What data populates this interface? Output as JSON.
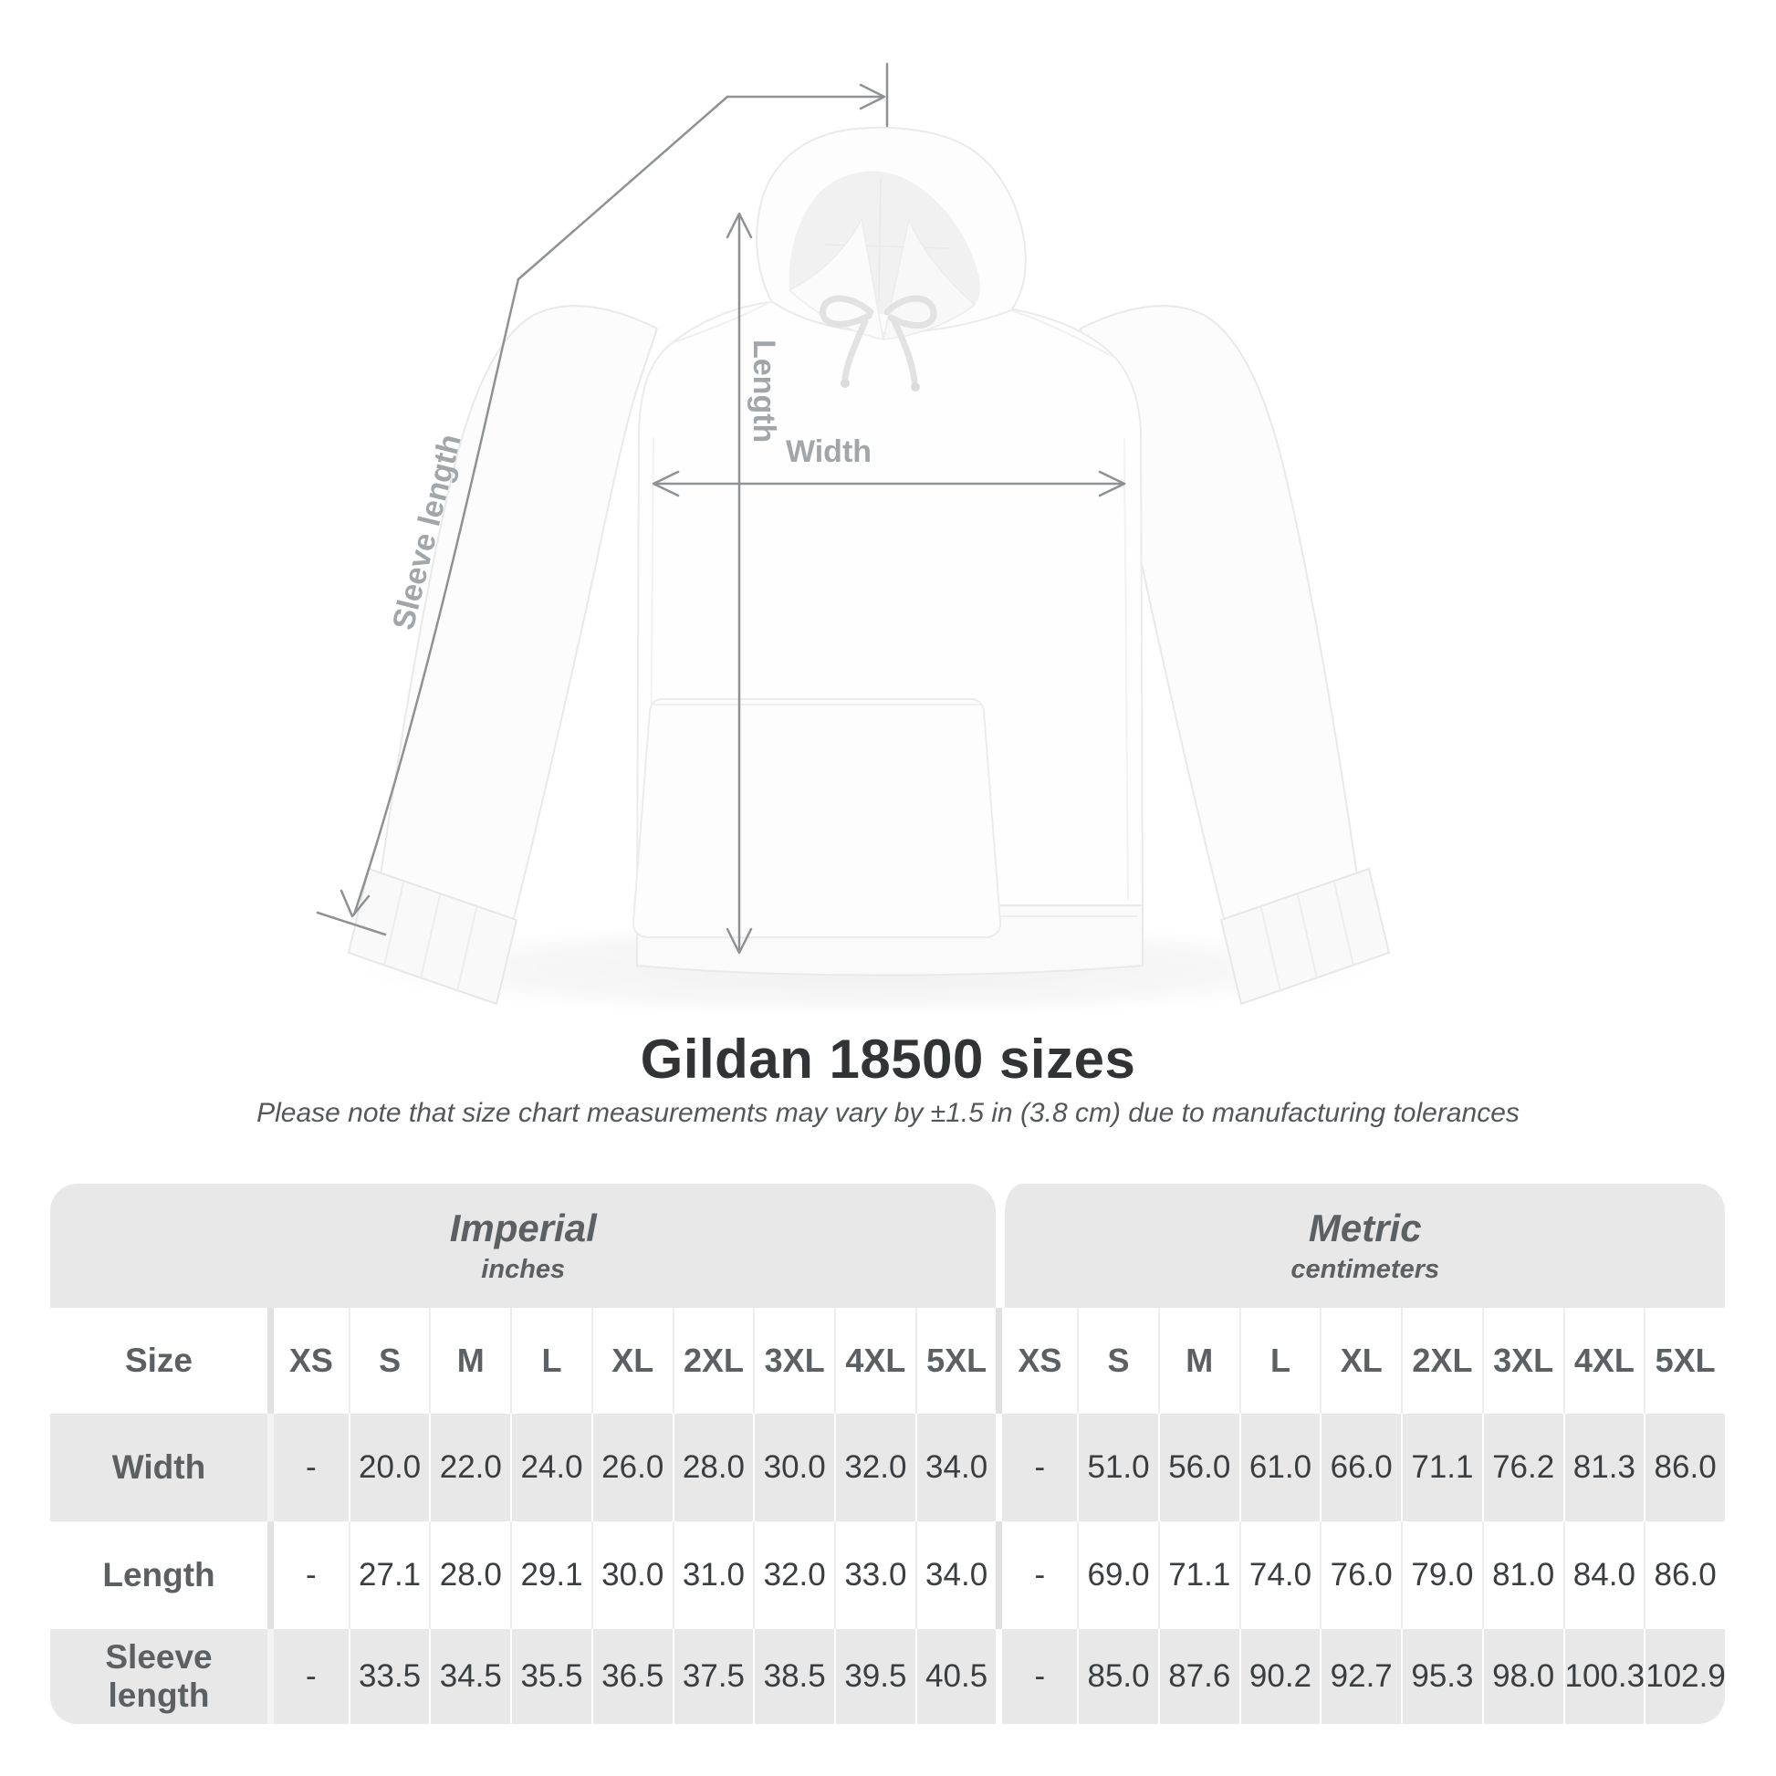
{
  "diagram": {
    "length_label": "Length",
    "width_label": "Width",
    "sleeve_label": "Sleeve length"
  },
  "title": "Gildan 18500 sizes",
  "subtitle": "Please note that size chart measurements may vary by ±1.5 in (3.8 cm) due to manufacturing tolerances",
  "table": {
    "sections": [
      {
        "label": "Imperial",
        "sublabel": "inches"
      },
      {
        "label": "Metric",
        "sublabel": "centimeters"
      }
    ],
    "size_header": "Size",
    "sizes": [
      "XS",
      "S",
      "M",
      "L",
      "XL",
      "2XL",
      "3XL",
      "4XL",
      "5XL"
    ],
    "rows": [
      {
        "label": "Width",
        "imperial": [
          "-",
          "20.0",
          "22.0",
          "24.0",
          "26.0",
          "28.0",
          "30.0",
          "32.0",
          "34.0"
        ],
        "metric": [
          "-",
          "51.0",
          "56.0",
          "61.0",
          "66.0",
          "71.1",
          "76.2",
          "81.3",
          "86.0"
        ]
      },
      {
        "label": "Length",
        "imperial": [
          "-",
          "27.1",
          "28.0",
          "29.1",
          "30.0",
          "31.0",
          "32.0",
          "33.0",
          "34.0"
        ],
        "metric": [
          "-",
          "69.0",
          "71.1",
          "74.0",
          "76.0",
          "79.0",
          "81.0",
          "84.0",
          "86.0"
        ]
      },
      {
        "label": "Sleeve length",
        "imperial": [
          "-",
          "33.5",
          "34.5",
          "35.5",
          "36.5",
          "37.5",
          "38.5",
          "39.5",
          "40.5"
        ],
        "metric": [
          "-",
          "85.0",
          "87.6",
          "90.2",
          "92.7",
          "95.3",
          "98.0",
          "100.3",
          "102.9"
        ]
      }
    ]
  },
  "chart_data": {
    "type": "table",
    "title": "Gildan 18500 sizes",
    "columns": [
      "Size",
      "XS",
      "S",
      "M",
      "L",
      "XL",
      "2XL",
      "3XL",
      "4XL",
      "5XL"
    ],
    "units": {
      "imperial": "inches",
      "metric": "centimeters"
    },
    "rows_imperial": [
      [
        "Width",
        "-",
        20.0,
        22.0,
        24.0,
        26.0,
        28.0,
        30.0,
        32.0,
        34.0
      ],
      [
        "Length",
        "-",
        27.1,
        28.0,
        29.1,
        30.0,
        31.0,
        32.0,
        33.0,
        34.0
      ],
      [
        "Sleeve length",
        "-",
        33.5,
        34.5,
        35.5,
        36.5,
        37.5,
        38.5,
        39.5,
        40.5
      ]
    ],
    "rows_metric": [
      [
        "Width",
        "-",
        51.0,
        56.0,
        61.0,
        66.0,
        71.1,
        76.2,
        81.3,
        86.0
      ],
      [
        "Length",
        "-",
        69.0,
        71.1,
        74.0,
        76.0,
        79.0,
        81.0,
        84.0,
        86.0
      ],
      [
        "Sleeve length",
        "-",
        85.0,
        87.6,
        90.2,
        92.7,
        95.3,
        98.0,
        100.3,
        102.9
      ]
    ]
  },
  "colors": {
    "annotation_line": "#8e9294",
    "annotation_label": "#a2a6a9",
    "table_band": "#e8e8e8",
    "header_text": "#5c6063",
    "value_text": "#3b3e40",
    "title_text": "#313335"
  }
}
